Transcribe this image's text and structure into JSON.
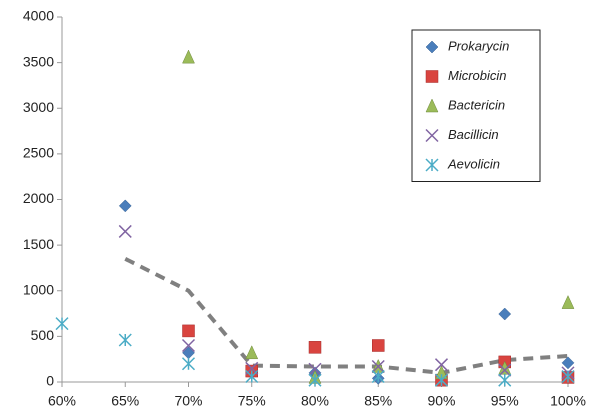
{
  "chart_data": {
    "type": "scatter",
    "x": [
      60,
      65,
      70,
      75,
      80,
      85,
      90,
      95,
      100
    ],
    "series": [
      {
        "name": "Prokarycin",
        "color": "#4a7ebb",
        "marker": "diamond",
        "values": [
          null,
          1930,
          320,
          110,
          100,
          40,
          50,
          745,
          210
        ]
      },
      {
        "name": "Microbicin",
        "color": "#d9443f",
        "marker": "square",
        "values": [
          null,
          null,
          560,
          120,
          380,
          400,
          20,
          220,
          50
        ]
      },
      {
        "name": "Bactericin",
        "color": "#9bbb59",
        "marker": "triangle",
        "values": [
          null,
          null,
          3560,
          320,
          50,
          170,
          100,
          150,
          870
        ]
      },
      {
        "name": "Bacillicin",
        "color": "#8064a2",
        "marker": "x",
        "values": [
          null,
          1650,
          400,
          150,
          140,
          170,
          190,
          130,
          100
        ]
      },
      {
        "name": "Aevolicin",
        "color": "#4bacc6",
        "marker": "star",
        "values": [
          640,
          460,
          200,
          60,
          20,
          60,
          20,
          20,
          60
        ]
      }
    ],
    "trend_line": {
      "color": "#808080",
      "values": [
        null,
        1350,
        1000,
        180,
        170,
        170,
        100,
        240,
        285
      ]
    },
    "xlim": [
      60,
      100
    ],
    "xticks": [
      {
        "value": 60,
        "label": "60%"
      },
      {
        "value": 65,
        "label": "65%"
      },
      {
        "value": 70,
        "label": "70%"
      },
      {
        "value": 75,
        "label": "75%"
      },
      {
        "value": 80,
        "label": "80%"
      },
      {
        "value": 85,
        "label": "85%"
      },
      {
        "value": 90,
        "label": "90%"
      },
      {
        "value": 95,
        "label": "95%"
      },
      {
        "value": 100,
        "label": "100%"
      }
    ],
    "ylim": [
      0,
      4000
    ],
    "yticks": [
      0,
      500,
      1000,
      1500,
      2000,
      2500,
      3000,
      3500,
      4000
    ],
    "grid": false,
    "legend": "top-right"
  }
}
